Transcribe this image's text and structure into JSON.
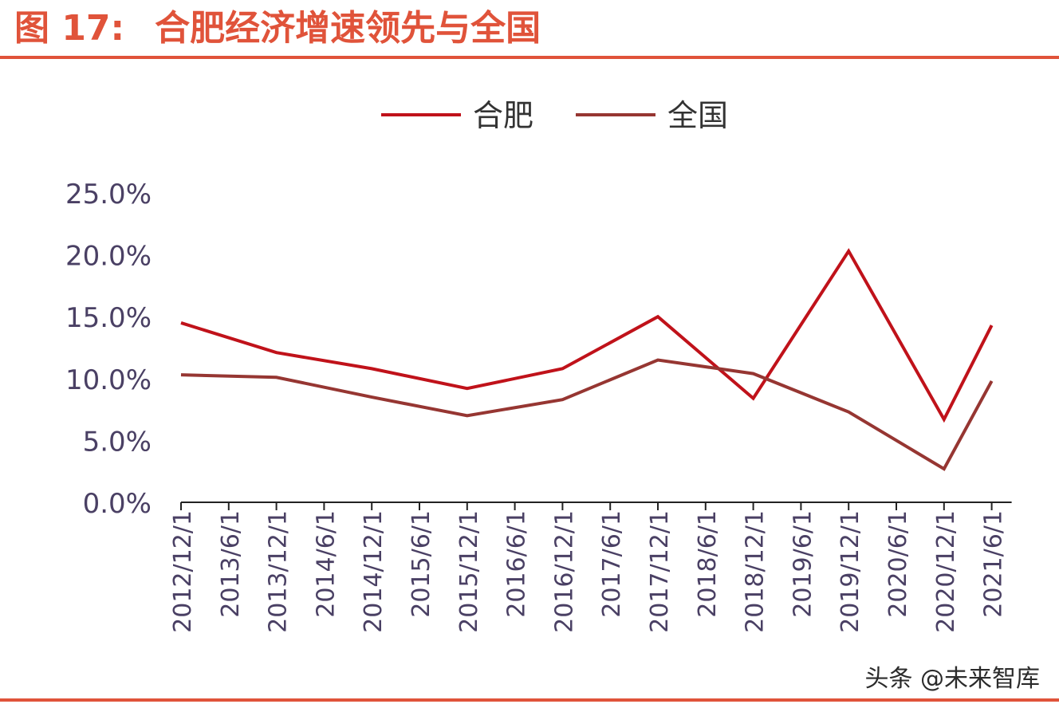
{
  "figure": {
    "label": "图 17:",
    "title": "合肥经济增速领先与全国"
  },
  "watermark": "头条 @未来智库",
  "chart_data": {
    "type": "line",
    "title": "合肥经济增速领先与全国",
    "xlabel": "",
    "ylabel": "",
    "categories": [
      "2012/12/1",
      "2013/6/1",
      "2013/12/1",
      "2014/6/1",
      "2014/12/1",
      "2015/6/1",
      "2015/12/1",
      "2016/6/1",
      "2016/12/1",
      "2017/6/1",
      "2017/12/1",
      "2018/6/1",
      "2018/12/1",
      "2019/6/1",
      "2019/12/1",
      "2020/6/1",
      "2020/12/1",
      "2021/6/1"
    ],
    "ylim": [
      0,
      25
    ],
    "yticks": [
      "0.0%",
      "5.0%",
      "10.0%",
      "15.0%",
      "20.0%",
      "25.0%"
    ],
    "grid": false,
    "legend_position": "top-center",
    "series": [
      {
        "name": "合肥",
        "color": "#c0121a",
        "values": [
          14.5,
          null,
          12.1,
          null,
          10.8,
          null,
          9.2,
          null,
          10.8,
          null,
          15.0,
          null,
          8.4,
          null,
          20.3,
          null,
          6.7,
          14.3
        ]
      },
      {
        "name": "全国",
        "color": "#963632",
        "values": [
          10.3,
          null,
          10.1,
          null,
          8.5,
          null,
          7.0,
          null,
          8.3,
          null,
          11.5,
          null,
          10.4,
          null,
          7.3,
          null,
          2.7,
          9.8
        ]
      }
    ]
  }
}
